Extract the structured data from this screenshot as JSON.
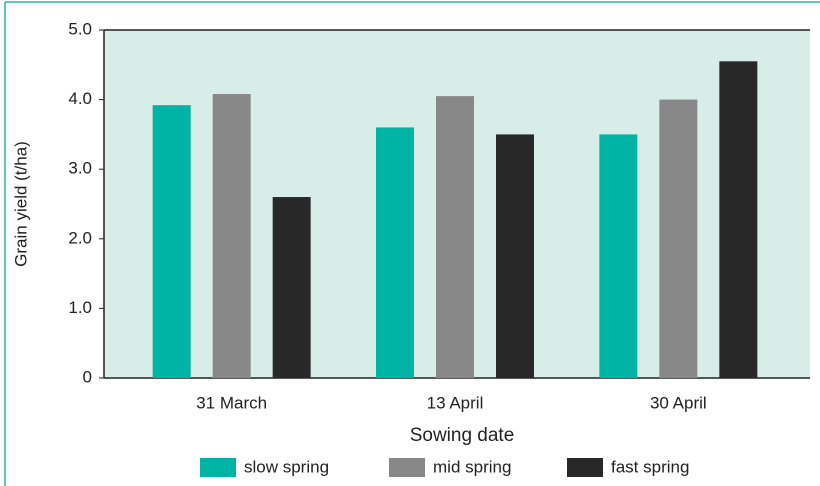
{
  "chart_data": {
    "type": "bar",
    "x_label": "Sowing date",
    "y_label": "Grain yield (t/ha)",
    "categories": [
      "31 March",
      "13 April",
      "30 April"
    ],
    "series": [
      {
        "name": "slow spring",
        "color": "#00b4a5",
        "values": [
          3.92,
          3.6,
          3.5
        ]
      },
      {
        "name": "mid spring",
        "color": "#888888",
        "values": [
          4.08,
          4.05,
          4.0
        ]
      },
      {
        "name": "fast spring",
        "color": "#282828",
        "values": [
          2.6,
          3.5,
          4.55
        ]
      }
    ],
    "ylim": [
      0,
      5
    ],
    "yticks": [
      0,
      {
        "value": 1,
        "label": "1.0"
      },
      {
        "value": 2,
        "label": "2.0"
      },
      {
        "value": 3,
        "label": "3.0"
      },
      {
        "value": 4,
        "label": "4.0"
      },
      {
        "value": 5,
        "label": "5.0"
      }
    ],
    "grid": false,
    "plot_background": "#d9ede8",
    "legend": "bottom"
  }
}
